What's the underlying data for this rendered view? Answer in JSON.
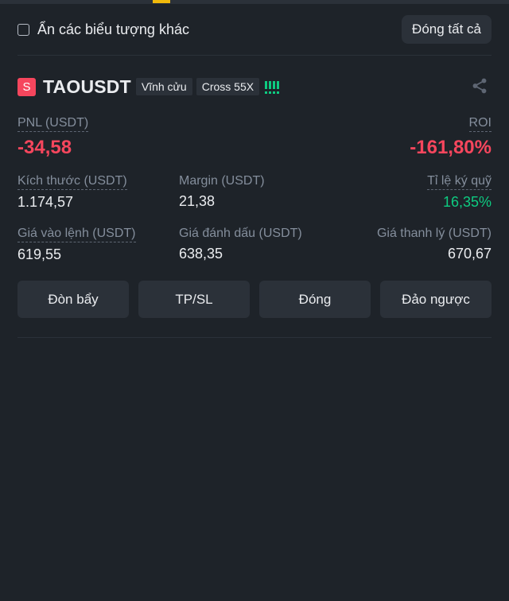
{
  "filter": {
    "hide_label": "Ẩn các biểu tượng khác",
    "close_all_label": "Đóng tất cả"
  },
  "position": {
    "side_badge": "S",
    "symbol": "TAOUSDT",
    "contract_type": "Vĩnh cửu",
    "margin_mode": "Cross 55X",
    "pnl_label": "PNL (USDT)",
    "pnl_value": "-34,58",
    "roi_label": "ROI",
    "roi_value": "-161,80%",
    "size_label": "Kích thước (USDT)",
    "size_value": "1.174,57",
    "margin_label": "Margin (USDT)",
    "margin_value": "21,38",
    "margin_ratio_label": "Tỉ lệ ký quỹ",
    "margin_ratio_value": "16,35%",
    "entry_label": "Giá vào lệnh (USDT)",
    "entry_value": "619,55",
    "mark_label": "Giá đánh dấu (USDT)",
    "mark_value": "638,35",
    "liq_label": "Giá thanh lý (USDT)",
    "liq_value": "670,67"
  },
  "actions": {
    "leverage": "Đòn bẩy",
    "tpsl": "TP/SL",
    "close": "Đóng",
    "reverse": "Đảo ngược"
  },
  "icons": {
    "share": "share-icon",
    "risk": "risk-bars-icon"
  },
  "colors": {
    "background": "#1e2329",
    "panel": "#2b3139",
    "loss": "#f6465d",
    "gain": "#0ecb81",
    "accent": "#f0b90b",
    "muted": "#848e9c"
  }
}
